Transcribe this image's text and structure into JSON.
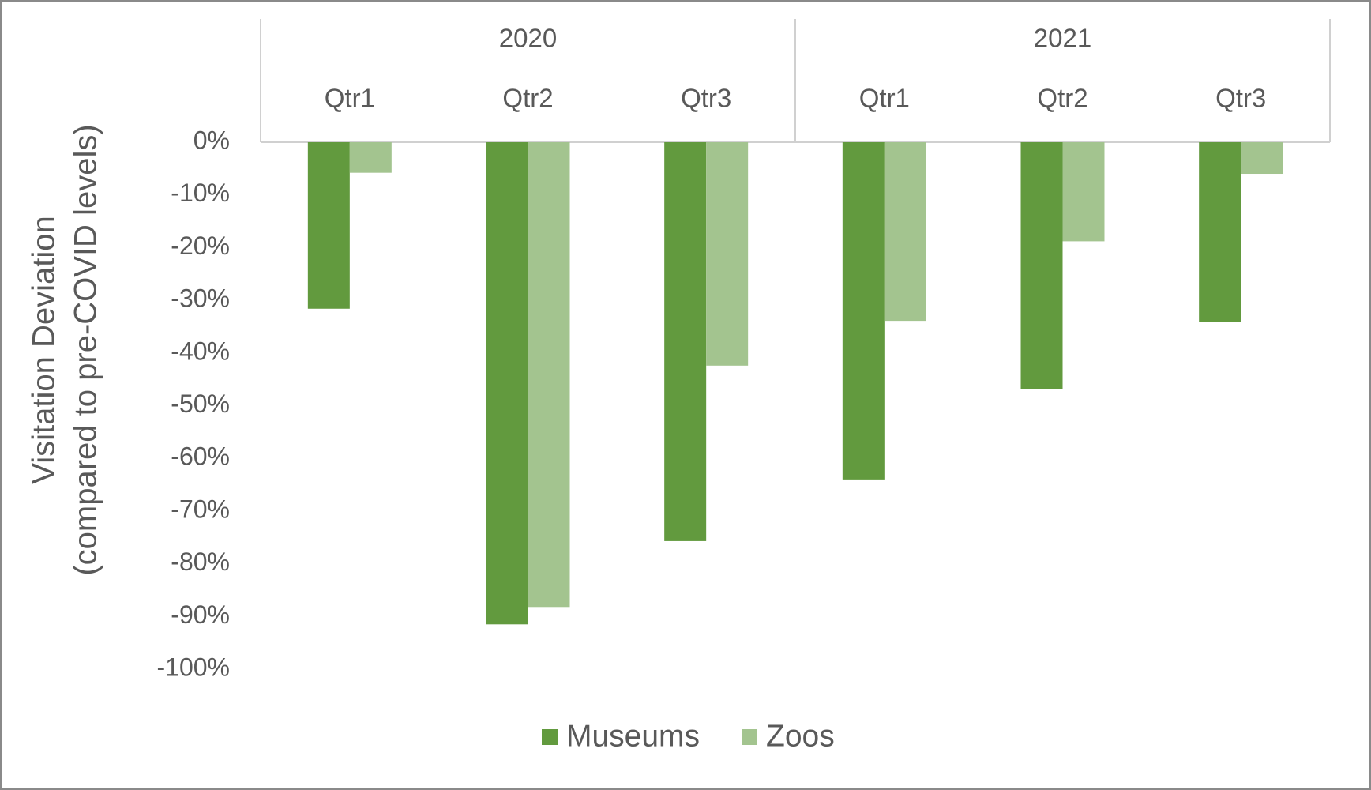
{
  "chart_data": {
    "type": "bar",
    "y_label": [
      "Visitation Deviation",
      "(compared to pre-COVID levels)"
    ],
    "groups": [
      {
        "name": "2020",
        "categories": [
          "Qtr1",
          "Qtr2",
          "Qtr3"
        ]
      },
      {
        "name": "2021",
        "categories": [
          "Qtr1",
          "Qtr2",
          "Qtr3"
        ]
      }
    ],
    "series": [
      {
        "name": "Museums",
        "color": "#629a3e",
        "values": [
          -31.6,
          -91.5,
          -75.7,
          -64.0,
          -46.8,
          -34.1
        ]
      },
      {
        "name": "Zoos",
        "color": "#a3c48f",
        "values": [
          -5.8,
          -88.2,
          -42.4,
          -33.9,
          -18.8,
          -6.0
        ]
      }
    ],
    "ylim": [
      -100,
      0
    ],
    "yticks": [
      {
        "value": 0,
        "label": "0%"
      },
      {
        "value": -10,
        "label": "-10%"
      },
      {
        "value": -20,
        "label": "-20%"
      },
      {
        "value": -30,
        "label": "-30%"
      },
      {
        "value": -40,
        "label": "-40%"
      },
      {
        "value": -50,
        "label": "-50%"
      },
      {
        "value": -60,
        "label": "-60%"
      },
      {
        "value": -70,
        "label": "-70%"
      },
      {
        "value": -80,
        "label": "-80%"
      },
      {
        "value": -90,
        "label": "-90%"
      },
      {
        "value": -100,
        "label": "-100%"
      }
    ],
    "grid": false,
    "legend": "bottom"
  }
}
